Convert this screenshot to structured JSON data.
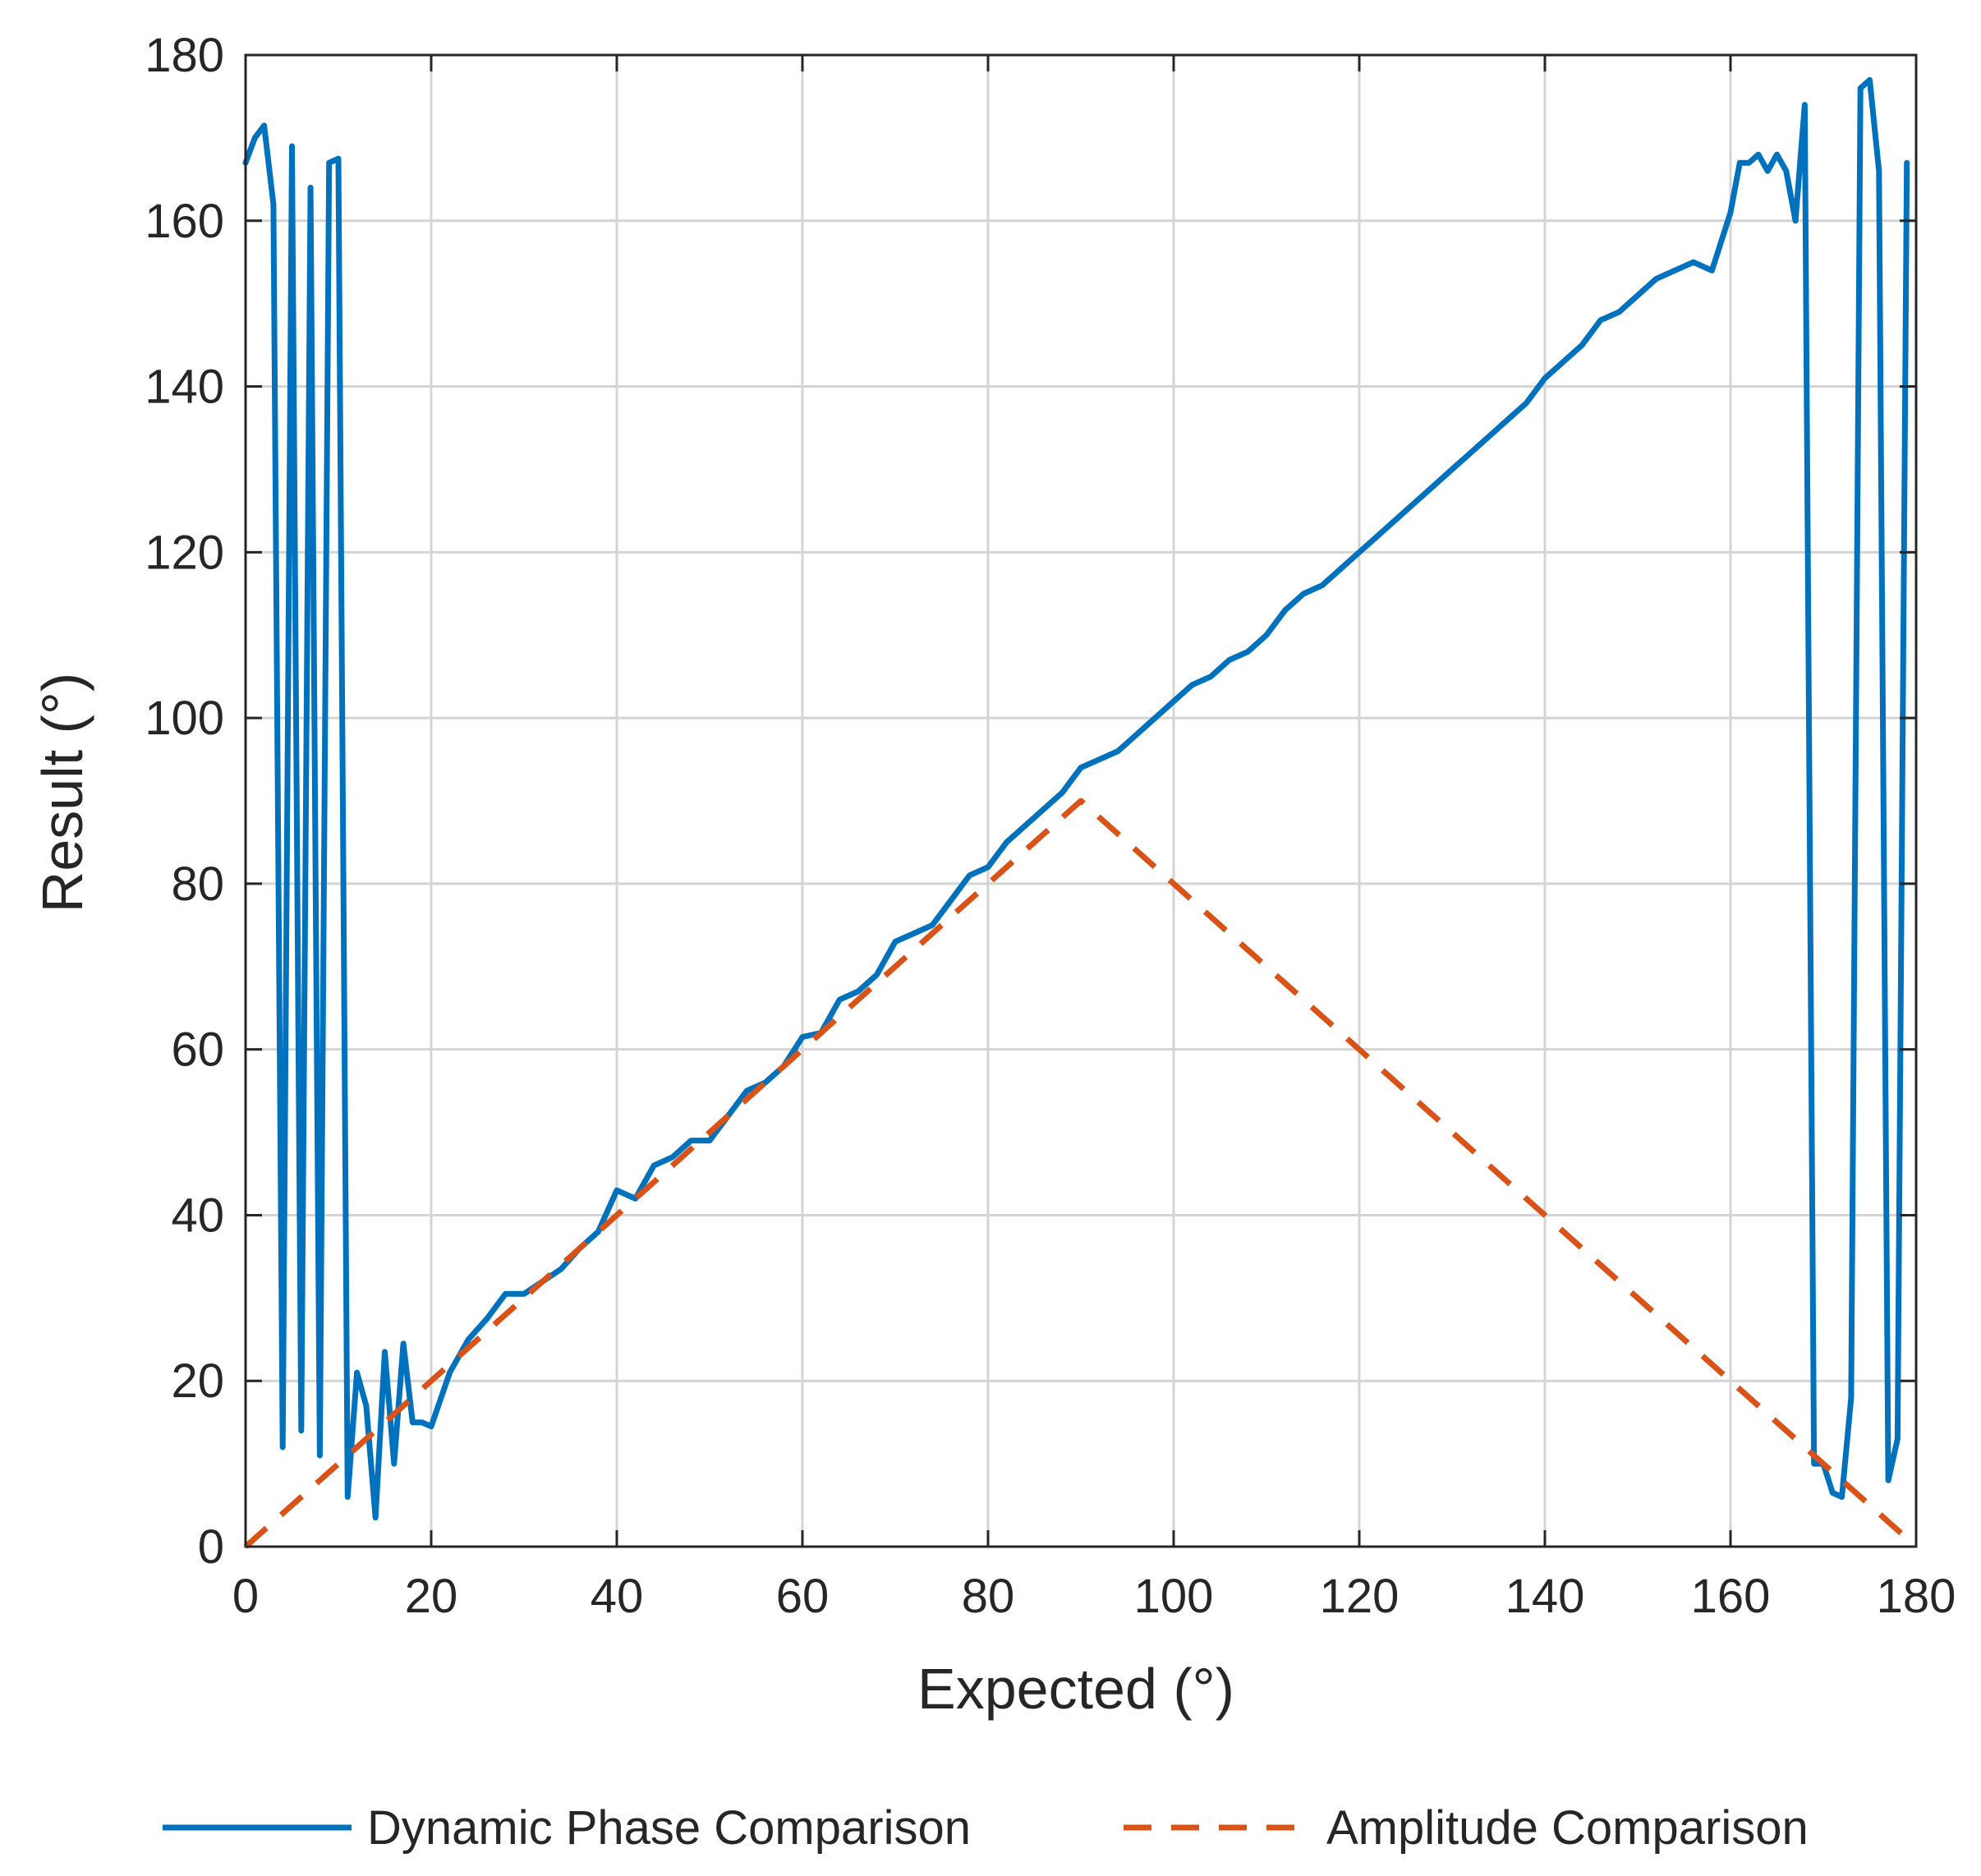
{
  "chart_data": {
    "type": "line",
    "title": "",
    "xlabel": "Expected (°)",
    "ylabel": "Result (°)",
    "xlim": [
      0,
      180
    ],
    "ylim": [
      0,
      180
    ],
    "xticks": [
      0,
      20,
      40,
      60,
      80,
      100,
      120,
      140,
      160,
      180
    ],
    "yticks": [
      0,
      20,
      40,
      60,
      80,
      100,
      120,
      140,
      160,
      180
    ],
    "grid": true,
    "legend_position": "bottom",
    "series": [
      {
        "name": "Dynamic Phase Comparison",
        "color": "#0072bd",
        "style": "solid",
        "x": [
          0,
          1,
          2,
          3,
          4,
          5,
          6,
          7,
          8,
          9,
          10,
          11,
          12,
          13,
          14,
          15,
          16,
          17,
          18,
          19,
          20,
          22,
          24,
          26,
          28,
          30,
          32,
          34,
          36,
          38,
          40,
          42,
          44,
          46,
          48,
          50,
          52,
          54,
          56,
          58,
          60,
          62,
          64,
          66,
          68,
          70,
          72,
          74,
          76,
          78,
          80,
          82,
          84,
          86,
          88,
          90,
          92,
          94,
          96,
          98,
          100,
          102,
          104,
          106,
          108,
          110,
          112,
          114,
          116,
          118,
          120,
          122,
          124,
          126,
          128,
          130,
          132,
          134,
          136,
          138,
          140,
          142,
          144,
          146,
          148,
          150,
          152,
          154,
          156,
          158,
          160,
          161,
          162,
          163,
          164,
          165,
          166,
          167,
          168,
          169,
          170,
          171,
          172,
          173,
          174,
          175,
          176,
          177,
          178,
          179
        ],
        "values": [
          167,
          170,
          171.5,
          162,
          12,
          169,
          14,
          164,
          11,
          167,
          167.5,
          6,
          21,
          17,
          3.5,
          23.5,
          10,
          24.5,
          15,
          15,
          14.5,
          21,
          25,
          27.5,
          30.5,
          30.5,
          32,
          33.5,
          36,
          38,
          43,
          42,
          46,
          47,
          49,
          49,
          52,
          55,
          56,
          58,
          61.5,
          62,
          66,
          67,
          69,
          73,
          74,
          75,
          78,
          81,
          82,
          85,
          87,
          89,
          91,
          94,
          95,
          96,
          98,
          100,
          102,
          104,
          105,
          107,
          108,
          110,
          113,
          115,
          116,
          118,
          120,
          122,
          124,
          126,
          128,
          130,
          132,
          134,
          136,
          138,
          141,
          143,
          145,
          148,
          149,
          151,
          153,
          154,
          155,
          154,
          161,
          167,
          167,
          168,
          166,
          168,
          166,
          160,
          174,
          10,
          10,
          6.5,
          6,
          18,
          176,
          177,
          166,
          8,
          13,
          167
        ]
      },
      {
        "name": "Amplitude Comparison",
        "color": "#d95319",
        "style": "dashed",
        "x": [
          0,
          4,
          8,
          12,
          16,
          20,
          24,
          28,
          32,
          36,
          40,
          44,
          48,
          52,
          56,
          60,
          64,
          68,
          72,
          76,
          80,
          84,
          88,
          90,
          92,
          96,
          100,
          104,
          108,
          112,
          116,
          120,
          124,
          128,
          132,
          136,
          140,
          144,
          148,
          152,
          156,
          160,
          164,
          168,
          172,
          176,
          179
        ],
        "values": [
          0,
          4,
          8,
          12,
          16,
          20,
          24,
          28,
          32,
          36,
          40,
          44,
          48,
          52,
          56,
          60,
          64,
          68,
          72,
          76,
          80,
          84,
          88,
          90,
          88,
          84,
          80,
          76,
          72,
          68,
          64,
          60,
          56,
          52,
          48,
          44,
          40,
          36,
          32,
          28,
          24,
          20,
          16,
          12,
          8,
          4,
          1
        ]
      }
    ]
  }
}
